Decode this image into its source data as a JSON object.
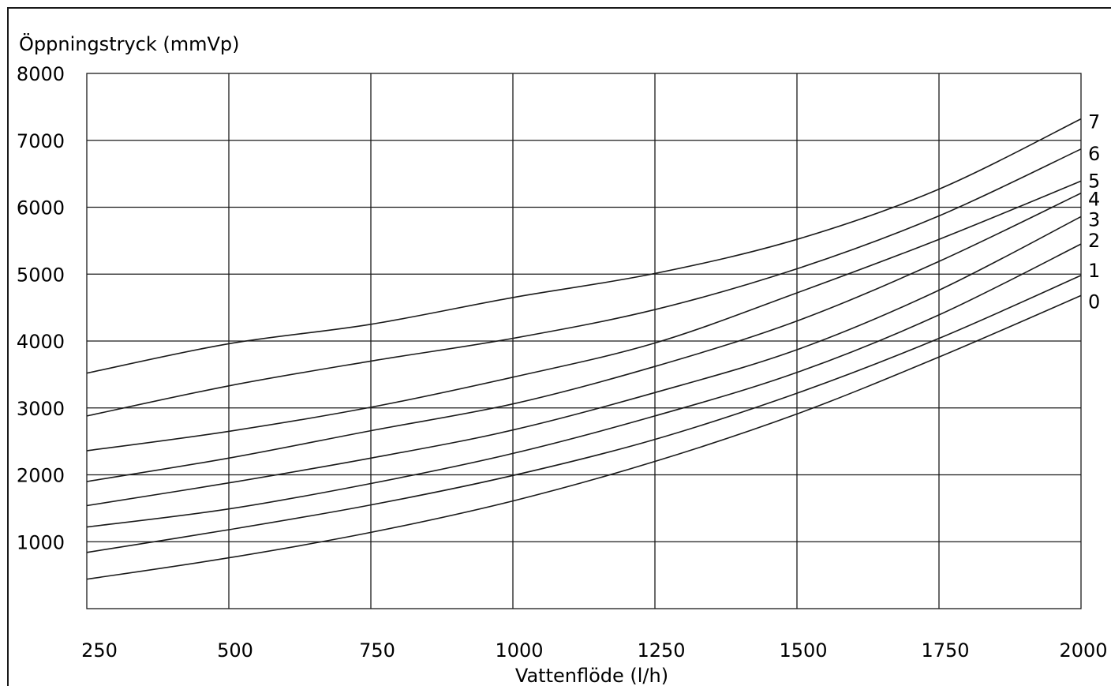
{
  "chart_data": {
    "type": "line",
    "title": "",
    "ylabel": "Öppningstryck (mmVp)",
    "xlabel": "Vattenflöde (l/h)",
    "xlim": [
      250,
      2000
    ],
    "ylim": [
      0,
      8000
    ],
    "x_ticks": [
      250,
      500,
      750,
      1000,
      1250,
      1500,
      1750,
      2000
    ],
    "y_ticks": [
      1000,
      2000,
      3000,
      4000,
      5000,
      6000,
      7000,
      8000
    ],
    "grid": true,
    "series": [
      {
        "name": "0",
        "points": [
          [
            250,
            440
          ],
          [
            500,
            760
          ],
          [
            750,
            1140
          ],
          [
            1000,
            1610
          ],
          [
            1250,
            2200
          ],
          [
            1500,
            2910
          ],
          [
            1750,
            3760
          ],
          [
            2000,
            4680
          ]
        ]
      },
      {
        "name": "1",
        "points": [
          [
            250,
            840
          ],
          [
            500,
            1180
          ],
          [
            750,
            1550
          ],
          [
            1000,
            1990
          ],
          [
            1250,
            2530
          ],
          [
            1500,
            3220
          ],
          [
            1750,
            4040
          ],
          [
            2000,
            4980
          ]
        ]
      },
      {
        "name": "2",
        "points": [
          [
            250,
            1220
          ],
          [
            500,
            1490
          ],
          [
            750,
            1870
          ],
          [
            1000,
            2320
          ],
          [
            1250,
            2880
          ],
          [
            1500,
            3530
          ],
          [
            1750,
            4390
          ],
          [
            2000,
            5450
          ]
        ]
      },
      {
        "name": "3",
        "points": [
          [
            250,
            1540
          ],
          [
            500,
            1880
          ],
          [
            750,
            2250
          ],
          [
            1000,
            2670
          ],
          [
            1250,
            3230
          ],
          [
            1500,
            3870
          ],
          [
            1750,
            4760
          ],
          [
            2000,
            5860
          ]
        ]
      },
      {
        "name": "4",
        "points": [
          [
            250,
            1900
          ],
          [
            500,
            2250
          ],
          [
            750,
            2660
          ],
          [
            1000,
            3060
          ],
          [
            1250,
            3620
          ],
          [
            1500,
            4300
          ],
          [
            1750,
            5190
          ],
          [
            2000,
            6210
          ]
        ]
      },
      {
        "name": "5",
        "points": [
          [
            250,
            2360
          ],
          [
            500,
            2650
          ],
          [
            750,
            3010
          ],
          [
            1000,
            3460
          ],
          [
            1250,
            3970
          ],
          [
            1500,
            4720
          ],
          [
            1750,
            5520
          ],
          [
            2000,
            6390
          ]
        ]
      },
      {
        "name": "6",
        "points": [
          [
            250,
            2880
          ],
          [
            500,
            3330
          ],
          [
            750,
            3700
          ],
          [
            1000,
            4040
          ],
          [
            1250,
            4470
          ],
          [
            1500,
            5080
          ],
          [
            1750,
            5870
          ],
          [
            2000,
            6870
          ]
        ]
      },
      {
        "name": "7",
        "points": [
          [
            250,
            3520
          ],
          [
            500,
            3960
          ],
          [
            750,
            4250
          ],
          [
            1000,
            4650
          ],
          [
            1250,
            5010
          ],
          [
            1500,
            5520
          ],
          [
            1750,
            6270
          ],
          [
            2000,
            7320
          ]
        ]
      }
    ]
  }
}
